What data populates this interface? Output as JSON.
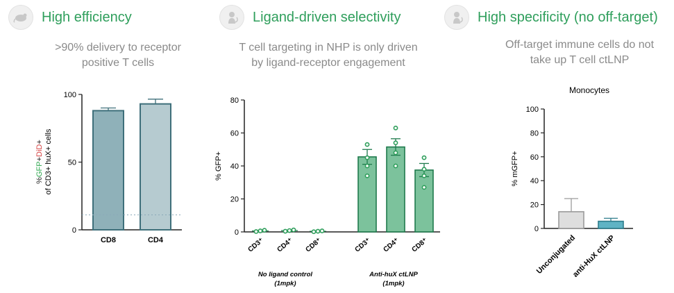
{
  "panels": [
    {
      "title": "High efficiency",
      "subtitle_line1": ">90% delivery to receptor",
      "subtitle_line2": "positive T cells",
      "icon": "mouse-icon"
    },
    {
      "title": "Ligand-driven selectivity",
      "subtitle_line1": "T cell targeting in NHP is only driven",
      "subtitle_line2": "by ligand-receptor engagement",
      "icon": "monkey-icon"
    },
    {
      "title": "High specificity (no off-target)",
      "subtitle_line1": "Off-target immune cells do not",
      "subtitle_line2": "take up T cell ctLNP",
      "icon": "monkey-icon"
    }
  ],
  "chart_data": [
    {
      "type": "bar",
      "title": "",
      "ylabel_parts": [
        "%",
        "GFP",
        "+",
        "DiD",
        "+"
      ],
      "ylabel_line2": "of CD3+ huX+ cells",
      "categories": [
        "CD8",
        "CD4"
      ],
      "values": [
        88,
        93
      ],
      "errors": [
        2,
        3.5
      ],
      "ylim": [
        0,
        100
      ],
      "yticks": [
        "0",
        "50",
        "100"
      ],
      "threshold": 11,
      "colors": {
        "fill": [
          "#8fb1b9",
          "#b6cbd0"
        ],
        "stroke": "#3e6f7a",
        "green": "#2fa84f",
        "red": "#d64545"
      }
    },
    {
      "type": "bar",
      "ylabel": "% GFP+",
      "ylim": [
        0,
        80
      ],
      "yticks": [
        "0",
        "20",
        "40",
        "60",
        "80"
      ],
      "groups": [
        {
          "label_line1": "No ligand control",
          "label_line2": "(1mpk)",
          "categories": [
            "CD3⁺",
            "CD4⁺",
            "CD8⁺"
          ],
          "values": [
            0.6,
            0.8,
            0.4
          ],
          "errors": [
            0.3,
            0.3,
            0.2
          ],
          "points": [
            [
              0.2,
              0.6,
              1.0
            ],
            [
              0.4,
              0.8,
              1.2
            ],
            [
              0.1,
              0.4,
              0.6
            ]
          ]
        },
        {
          "label_line1": "Anti-huX ctLNP",
          "label_line2": "(1mpk)",
          "categories": [
            "CD3⁺",
            "CD4⁺",
            "CD8⁺"
          ],
          "values": [
            45.5,
            51.5,
            37.5
          ],
          "errors": [
            4.5,
            5,
            4
          ],
          "points": [
            [
              53,
              45,
              40,
              34
            ],
            [
              63,
              54,
              48,
              40
            ],
            [
              45,
              38,
              34,
              27
            ]
          ]
        }
      ],
      "colors": {
        "fill": "#7cc29c",
        "stroke": "#1f7a4d",
        "point": "#2e9e5b"
      }
    },
    {
      "type": "bar",
      "title": "Monocytes",
      "ylabel": "% mGFP+",
      "categories": [
        "Unconjugated",
        "anti-HuX ctLNP"
      ],
      "values": [
        14,
        6
      ],
      "errors": [
        11,
        2.5
      ],
      "ylim": [
        0,
        100
      ],
      "yticks": [
        "0",
        "20",
        "40",
        "60",
        "80",
        "100"
      ],
      "colors": {
        "fill": [
          "#dedede",
          "#5fb3c4"
        ],
        "stroke": [
          "#9a9a9a",
          "#2f7d8c"
        ]
      }
    }
  ]
}
